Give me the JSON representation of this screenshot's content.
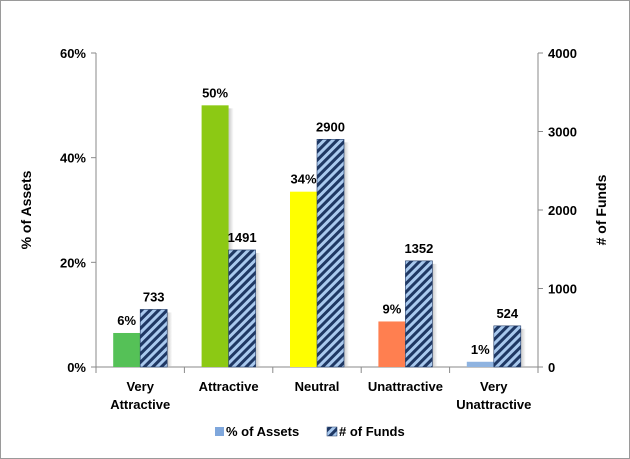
{
  "chart_data": {
    "type": "bar",
    "categories": [
      [
        "Very",
        "Attractive"
      ],
      [
        "Attractive"
      ],
      [
        "Neutral"
      ],
      [
        "Unattractive"
      ],
      [
        "Very",
        "Unattractive"
      ]
    ],
    "series": [
      {
        "name": "% of Assets",
        "axis": "left",
        "values": [
          6.5,
          50,
          33.5,
          8.7,
          1.0
        ],
        "labels": [
          "6%",
          "50%",
          "34%",
          "9%",
          "1%"
        ],
        "colors": [
          "#55c157",
          "#8cc914",
          "#ffff00",
          "#ff7f50",
          "#8fb3e0"
        ]
      },
      {
        "name": "# of Funds",
        "axis": "right",
        "values": [
          733,
          1491,
          2900,
          1352,
          524
        ],
        "labels": [
          "733",
          "1491",
          "2900",
          "1352",
          "524"
        ],
        "fill": "hatched",
        "colors": [
          "#1f3864",
          "#a5c8ee"
        ]
      }
    ],
    "ylabel_left": "% of Assets",
    "ylabel_right": "# of Funds",
    "ylim_left": [
      0,
      60
    ],
    "ylim_right": [
      0,
      4000
    ],
    "yticks_left": [
      "0%",
      "20%",
      "40%",
      "60%"
    ],
    "yticks_right": [
      "0",
      "1000",
      "2000",
      "3000",
      "4000"
    ],
    "grid": false,
    "legend": "bottom",
    "legend_colors": [
      "#7fa7dc",
      "#1f3864"
    ]
  }
}
